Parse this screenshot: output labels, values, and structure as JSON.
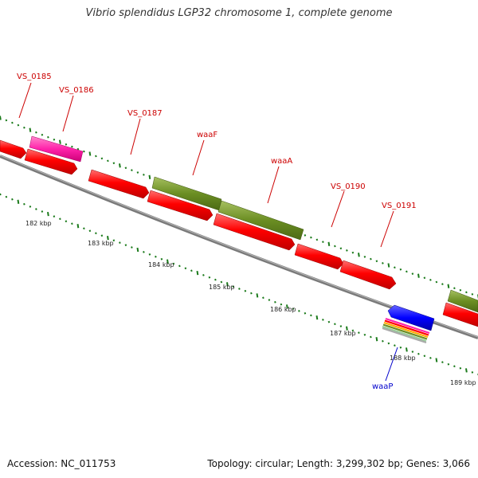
{
  "title": "Vibrio splendidus LGP32 chromosome 1, complete genome",
  "accession": "Accession: NC_011753",
  "topology": "Topology: circular; Length: 3,299,302 bp; Genes: 3,066",
  "colors": {
    "backbone": "#8a8a8a",
    "cds": "#ff0000",
    "pink_gene": "#ff22aa",
    "olive_gene": "#6b8e23",
    "blue_gene": "#0000ff",
    "tick": "#1a7a1a",
    "label_red": "#cc0000",
    "label_blue": "#0000cc"
  },
  "scale_labels": [
    {
      "text": "182 kbp",
      "kbp": 182
    },
    {
      "text": "183 kbp",
      "kbp": 183
    },
    {
      "text": "184 kbp",
      "kbp": 184
    },
    {
      "text": "185 kbp",
      "kbp": 185
    },
    {
      "text": "186 kbp",
      "kbp": 186
    },
    {
      "text": "187 kbp",
      "kbp": 187
    },
    {
      "text": "188 kbp",
      "kbp": 188
    },
    {
      "text": "189 kbp",
      "kbp": 189
    }
  ],
  "genes": [
    {
      "label": "VS_0185",
      "color": "label_red"
    },
    {
      "label": "VS_0186",
      "color": "label_red"
    },
    {
      "label": "VS_0187",
      "color": "label_red"
    },
    {
      "label": "waaF",
      "color": "label_red"
    },
    {
      "label": "waaA",
      "color": "label_red"
    },
    {
      "label": "VS_0190",
      "color": "label_red"
    },
    {
      "label": "VS_0191",
      "color": "label_red"
    },
    {
      "label": "waaP",
      "color": "label_blue"
    }
  ]
}
